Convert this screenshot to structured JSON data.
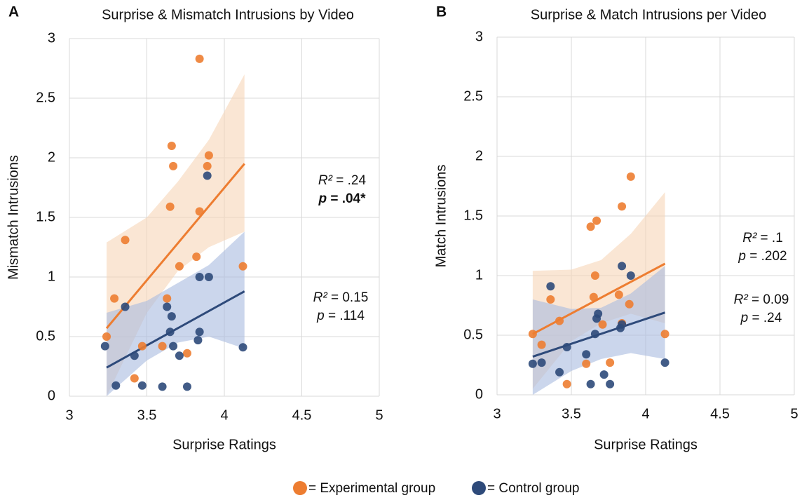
{
  "chart_data": [
    {
      "type": "scatter",
      "panel": "A",
      "title": "Surprise & Mismatch Intrusions by Video",
      "x_label": "Surprise Ratings",
      "y_label": "Mismatch Intrusions",
      "xlim": [
        3,
        5
      ],
      "xticks": [
        3,
        3.5,
        4,
        4.5,
        5
      ],
      "ylim": [
        0,
        3
      ],
      "yticks": [
        0,
        0.5,
        1,
        1.5,
        2,
        2.5,
        3
      ],
      "grid": true,
      "series": [
        {
          "color": "#ed7d31",
          "band_color": "#f6d6b8",
          "x": [
            3.24,
            3.29,
            3.36,
            3.42,
            3.47,
            3.6,
            3.63,
            3.65,
            3.66,
            3.67,
            3.71,
            3.76,
            3.82,
            3.84,
            3.84,
            3.89,
            3.9,
            4.12
          ],
          "values": [
            0.5,
            0.82,
            1.31,
            0.15,
            0.42,
            0.42,
            0.82,
            1.59,
            2.1,
            1.93,
            1.09,
            0.36,
            1.17,
            1.55,
            2.83,
            1.93,
            2.02,
            1.09
          ],
          "trendline": {
            "x": [
              3.24,
              4.13
            ],
            "y": [
              0.57,
              1.95
            ]
          },
          "band": {
            "x": [
              3.24,
              3.5,
              3.7,
              3.9,
              4.13
            ],
            "upper": [
              1.29,
              1.5,
              1.8,
              2.15,
              2.7
            ],
            "lower": [
              0.0,
              0.7,
              1.05,
              1.25,
              1.38
            ]
          },
          "annotation": [
            {
              "label": "R²",
              "text": " = .24"
            },
            {
              "label": "p",
              "text": " = .04*",
              "bold": true
            }
          ]
        },
        {
          "color": "#2e4a7a",
          "band_color": "#a9bbe0",
          "x": [
            3.23,
            3.3,
            3.36,
            3.42,
            3.47,
            3.6,
            3.63,
            3.66,
            3.65,
            3.67,
            3.71,
            3.76,
            3.83,
            3.84,
            3.84,
            3.9,
            3.89,
            4.12
          ],
          "values": [
            0.42,
            0.09,
            0.75,
            0.34,
            0.09,
            0.08,
            0.75,
            0.67,
            0.54,
            0.42,
            0.34,
            0.08,
            0.47,
            0.54,
            1.0,
            1.0,
            1.85,
            0.41
          ],
          "trendline": {
            "x": [
              3.24,
              4.13
            ],
            "y": [
              0.24,
              0.88
            ]
          },
          "band": {
            "x": [
              3.24,
              3.5,
              3.7,
              3.9,
              4.13
            ],
            "upper": [
              0.7,
              0.8,
              0.95,
              1.1,
              1.38
            ],
            "lower": [
              0.0,
              0.3,
              0.45,
              0.5,
              0.4
            ]
          },
          "annotation": [
            {
              "label": "R²",
              "text": " = 0.15"
            },
            {
              "label": "p",
              "text": " = .114"
            }
          ]
        }
      ]
    },
    {
      "type": "scatter",
      "panel": "B",
      "title": "Surprise & Match Intrusions per Video",
      "x_label": "Surprise Ratings",
      "y_label": "Match Intrusions",
      "xlim": [
        3,
        5
      ],
      "xticks": [
        3,
        3.5,
        4,
        4.5,
        5
      ],
      "ylim": [
        0,
        3
      ],
      "yticks": [
        0,
        0.5,
        1,
        1.5,
        2,
        2.5,
        3
      ],
      "grid": true,
      "series": [
        {
          "color": "#ed7d31",
          "band_color": "#f6d6b8",
          "x": [
            3.24,
            3.3,
            3.36,
            3.42,
            3.47,
            3.6,
            3.63,
            3.65,
            3.66,
            3.67,
            3.71,
            3.76,
            3.82,
            3.84,
            3.89,
            3.9,
            3.84,
            4.13
          ],
          "values": [
            0.51,
            0.42,
            0.8,
            0.62,
            0.09,
            0.26,
            1.41,
            0.82,
            1.0,
            1.46,
            0.59,
            0.27,
            0.84,
            1.58,
            0.76,
            1.83,
            0.6,
            0.51
          ],
          "trendline": {
            "x": [
              3.24,
              4.13
            ],
            "y": [
              0.51,
              1.1
            ]
          },
          "band": {
            "x": [
              3.24,
              3.5,
              3.7,
              3.9,
              4.13
            ],
            "upper": [
              1.04,
              1.05,
              1.13,
              1.35,
              1.7
            ],
            "lower": [
              0.05,
              0.45,
              0.6,
              0.68,
              0.6
            ]
          },
          "annotation": [
            {
              "label": "R²",
              "text": " = .1"
            },
            {
              "label": "p",
              "text": " = .202"
            }
          ]
        },
        {
          "color": "#2e4a7a",
          "band_color": "#a9bbe0",
          "x": [
            3.24,
            3.3,
            3.36,
            3.42,
            3.47,
            3.6,
            3.63,
            3.66,
            3.67,
            3.68,
            3.72,
            3.76,
            3.83,
            3.84,
            3.84,
            3.9,
            4.13
          ],
          "values": [
            0.26,
            0.27,
            0.91,
            0.19,
            0.4,
            0.34,
            0.09,
            0.51,
            0.64,
            0.68,
            0.17,
            0.09,
            0.56,
            1.08,
            0.59,
            1.0,
            0.27
          ],
          "trendline": {
            "x": [
              3.24,
              4.13
            ],
            "y": [
              0.32,
              0.69
            ]
          },
          "band": {
            "x": [
              3.24,
              3.5,
              3.7,
              3.9,
              4.13
            ],
            "upper": [
              0.8,
              0.72,
              0.73,
              0.85,
              1.08
            ],
            "lower": [
              0.0,
              0.2,
              0.3,
              0.35,
              0.3
            ]
          },
          "annotation": [
            {
              "label": "R²",
              "text": " = 0.09"
            },
            {
              "label": "p",
              "text": " = .24"
            }
          ]
        }
      ]
    }
  ],
  "legend": {
    "items": [
      {
        "label": "= Experimental group",
        "color": "#ed7d31"
      },
      {
        "label": "= Control group",
        "color": "#2e4a7a"
      }
    ]
  }
}
